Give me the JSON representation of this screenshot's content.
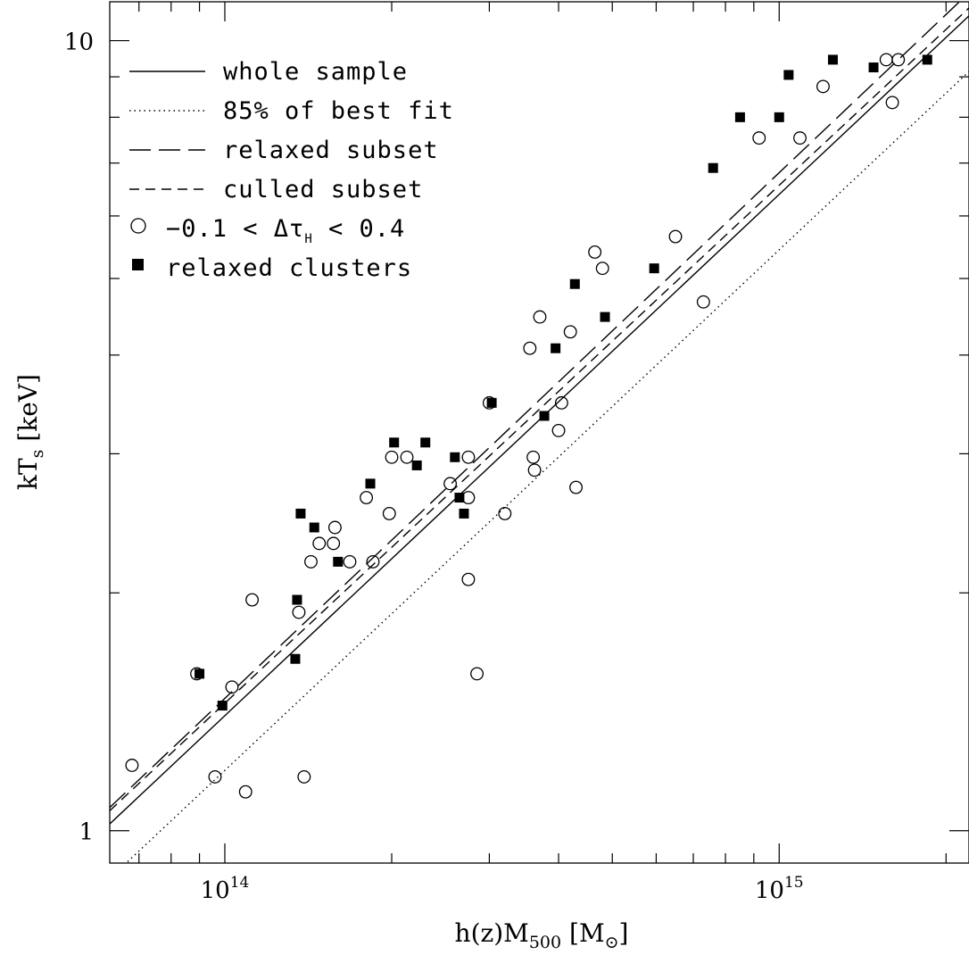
{
  "chart_data": {
    "type": "scatter",
    "title": "",
    "xlabel": {
      "main": "h(z)M",
      "sub": "500",
      "unit": "[M",
      "unit_sub": "⊙",
      "unit_close": "]"
    },
    "ylabel": {
      "main": "kT",
      "sub": "s",
      "unit": "[keV]"
    },
    "x_scale": "log",
    "y_scale": "log",
    "xlim": [
      62000000000000.0,
      2200000000000000.0
    ],
    "ylim": [
      0.91,
      11.2
    ],
    "x_tick_labels": [
      {
        "value": 100000000000000.0,
        "base": "10",
        "exp": "14"
      },
      {
        "value": 1000000000000000.0,
        "base": "10",
        "exp": "15"
      }
    ],
    "y_tick_labels": [
      {
        "value": 1,
        "text": "1"
      },
      {
        "value": 10,
        "text": "10"
      }
    ],
    "grid": false,
    "legend_position": "top-left",
    "legend": [
      {
        "label": "whole sample",
        "style": "solid"
      },
      {
        "label": "85% of best fit",
        "style": "dotted"
      },
      {
        "label": "relaxed subset",
        "style": "long-dash"
      },
      {
        "label": "culled subset",
        "style": "short-dash"
      },
      {
        "label": "−0.1 < Δτ",
        "label_sub": "H",
        "label_tail": " < 0.4",
        "style": "open-circle"
      },
      {
        "label": "relaxed clusters",
        "style": "filled-square"
      }
    ],
    "lines": [
      {
        "name": "whole sample",
        "style": "solid",
        "x": [
          62000000000000.0,
          2200000000000000.0
        ],
        "y": [
          1.02,
          10.75
        ]
      },
      {
        "name": "85% of best fit",
        "style": "dotted",
        "x": [
          62000000000000.0,
          2200000000000000.0
        ],
        "y": [
          0.87,
          9.14
        ]
      },
      {
        "name": "relaxed subset",
        "style": "long-dash",
        "x": [
          62000000000000.0,
          2200000000000000.0
        ],
        "y": [
          1.07,
          11.5
        ]
      },
      {
        "name": "culled subset",
        "style": "short-dash",
        "x": [
          62000000000000.0,
          2200000000000000.0
        ],
        "y": [
          1.06,
          11.0
        ]
      }
    ],
    "series": [
      {
        "name": "−0.1 < Δτ_H < 0.4",
        "marker": "open-circle",
        "points": [
          [
            68000000000000.0,
            1.21
          ],
          [
            89000000000000.0,
            1.58
          ],
          [
            96000000000000.0,
            1.17
          ],
          [
            103000000000000.0,
            1.52
          ],
          [
            109000000000000.0,
            1.12
          ],
          [
            112000000000000.0,
            1.96
          ],
          [
            136000000000000.0,
            1.89
          ],
          [
            139000000000000.0,
            1.17
          ],
          [
            143000000000000.0,
            2.19
          ],
          [
            148000000000000.0,
            2.31
          ],
          [
            157000000000000.0,
            2.31
          ],
          [
            158000000000000.0,
            2.42
          ],
          [
            168000000000000.0,
            2.19
          ],
          [
            180000000000000.0,
            2.64
          ],
          [
            185000000000000.0,
            2.19
          ],
          [
            198000000000000.0,
            2.52
          ],
          [
            200000000000000.0,
            2.97
          ],
          [
            213000000000000.0,
            2.97
          ],
          [
            255000000000000.0,
            2.75
          ],
          [
            275000000000000.0,
            2.64
          ],
          [
            275000000000000.0,
            2.97
          ],
          [
            275000000000000.0,
            2.08
          ],
          [
            285000000000000.0,
            1.58
          ],
          [
            300000000000000.0,
            3.48
          ],
          [
            320000000000000.0,
            2.52
          ],
          [
            355000000000000.0,
            4.08
          ],
          [
            360000000000000.0,
            2.97
          ],
          [
            362000000000000.0,
            2.86
          ],
          [
            370000000000000.0,
            4.47
          ],
          [
            400000000000000.0,
            3.21
          ],
          [
            405000000000000.0,
            3.48
          ],
          [
            420000000000000.0,
            4.28
          ],
          [
            430000000000000.0,
            2.72
          ],
          [
            465000000000000.0,
            5.4
          ],
          [
            480000000000000.0,
            5.15
          ],
          [
            650000000000000.0,
            5.65
          ],
          [
            730000000000000.0,
            4.67
          ],
          [
            920000000000000.0,
            7.53
          ],
          [
            1090000000000000.0,
            7.53
          ],
          [
            1200000000000000.0,
            8.75
          ],
          [
            1560000000000000.0,
            9.46
          ],
          [
            1600000000000000.0,
            8.35
          ],
          [
            1640000000000000.0,
            9.46
          ]
        ]
      },
      {
        "name": "relaxed clusters",
        "marker": "filled-square",
        "points": [
          [
            90000000000000.0,
            1.58
          ],
          [
            99000000000000.0,
            1.44
          ],
          [
            134000000000000.0,
            1.65
          ],
          [
            135000000000000.0,
            1.96
          ],
          [
            137000000000000.0,
            2.52
          ],
          [
            145000000000000.0,
            2.42
          ],
          [
            160000000000000.0,
            2.19
          ],
          [
            183000000000000.0,
            2.75
          ],
          [
            202000000000000.0,
            3.1
          ],
          [
            222000000000000.0,
            2.9
          ],
          [
            230000000000000.0,
            3.1
          ],
          [
            260000000000000.0,
            2.97
          ],
          [
            265000000000000.0,
            2.64
          ],
          [
            270000000000000.0,
            2.52
          ],
          [
            303000000000000.0,
            3.48
          ],
          [
            377000000000000.0,
            3.35
          ],
          [
            395000000000000.0,
            4.08
          ],
          [
            428000000000000.0,
            4.92
          ],
          [
            485000000000000.0,
            4.47
          ],
          [
            595000000000000.0,
            5.15
          ],
          [
            760000000000000.0,
            6.9
          ],
          [
            850000000000000.0,
            8.0
          ],
          [
            1000000000000000.0,
            8.0
          ],
          [
            1040000000000000.0,
            9.05
          ],
          [
            1250000000000000.0,
            9.46
          ],
          [
            1480000000000000.0,
            9.25
          ],
          [
            1850000000000000.0,
            9.46
          ]
        ]
      }
    ]
  }
}
